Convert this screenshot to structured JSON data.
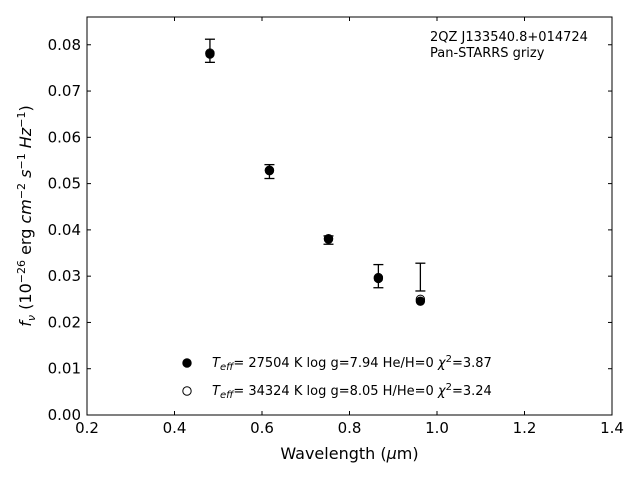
{
  "chart_data": {
    "type": "scatter",
    "xlabel": "Wavelength (μm)",
    "ylabel": "f_ν (10^-26 erg cm^-2 s^-1 Hz^-1)",
    "xlim": [
      0.2,
      1.4
    ],
    "ylim": [
      0.0,
      0.086
    ],
    "x_ticks": [
      "0.2",
      "0.4",
      "0.6",
      "0.8",
      "1.0",
      "1.2",
      "1.4"
    ],
    "y_ticks": [
      "0.00",
      "0.01",
      "0.02",
      "0.03",
      "0.04",
      "0.05",
      "0.06",
      "0.07",
      "0.08"
    ],
    "annotation": [
      "2QZ J133540.8+014724",
      "Pan-STARRS grizy"
    ],
    "observed": {
      "x": [
        0.481,
        0.617,
        0.752,
        0.866,
        0.962
      ],
      "y": [
        0.0787,
        0.0526,
        0.0378,
        0.03,
        0.0298
      ],
      "err": [
        0.0025,
        0.0015,
        0.0009,
        0.0025,
        0.003
      ]
    },
    "series": [
      {
        "name": "T_eff= 27504 K  log g=7.94  He/H=0  χ²=3.87",
        "marker": "filled-circle",
        "x": [
          0.481,
          0.617,
          0.752,
          0.866,
          0.962
        ],
        "y": [
          0.078,
          0.0528,
          0.038,
          0.0295,
          0.0246
        ]
      },
      {
        "name": "T_eff= 34324 K  log g=8.05  H/He=0  χ²=3.24",
        "marker": "open-circle",
        "x": [
          0.481,
          0.617,
          0.752,
          0.866,
          0.962
        ],
        "y": [
          0.0782,
          0.0529,
          0.0381,
          0.0297,
          0.025
        ]
      }
    ],
    "legend_position": "lower-center",
    "grid": false
  }
}
